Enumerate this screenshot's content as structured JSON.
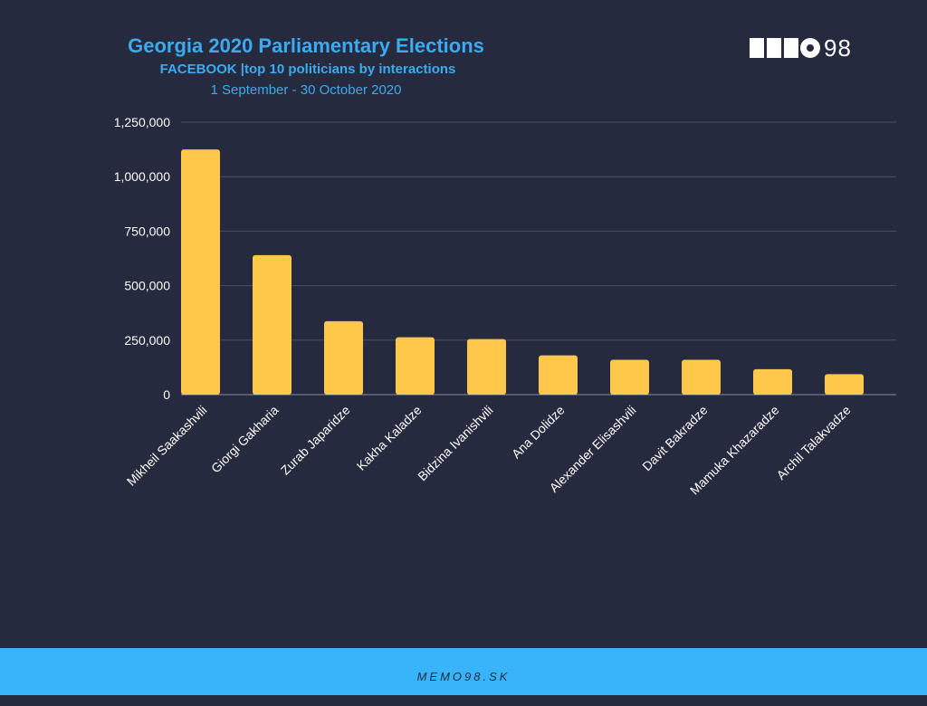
{
  "header": {
    "title": "Georgia 2020 Parliamentary Elections",
    "subtitle": "FACEBOOK |top 10 politicians by interactions",
    "period": "1 September - 30 October 2020"
  },
  "logo": {
    "text": "98",
    "icon": "memo98-logo"
  },
  "footer": {
    "text": "MEMO98.SK"
  },
  "colors": {
    "background": "#262a3f",
    "bar": "#ffc84a",
    "accent": "#3aabf0",
    "footer": "#38b5fa"
  },
  "chart_data": {
    "type": "bar",
    "categories": [
      "Mikheil Saakashvili",
      "Giorgi Gakharia",
      "Zurab Japaridze",
      "Kakha Kaladze",
      "Bidzina Ivanishvili",
      "Ana Dolidze",
      "Alexander Elisashvili",
      "Davit Bakradze",
      "Mamuka Khazaradze",
      "Archil Talakvadze"
    ],
    "values": [
      1125000,
      640000,
      337000,
      263000,
      255000,
      180000,
      160000,
      160000,
      117000,
      94000
    ],
    "ylim": [
      0,
      1250000
    ],
    "yticks": [
      "0",
      "250,000",
      "500,000",
      "750,000",
      "1,000,000",
      "1,250,000"
    ],
    "grid": true
  }
}
